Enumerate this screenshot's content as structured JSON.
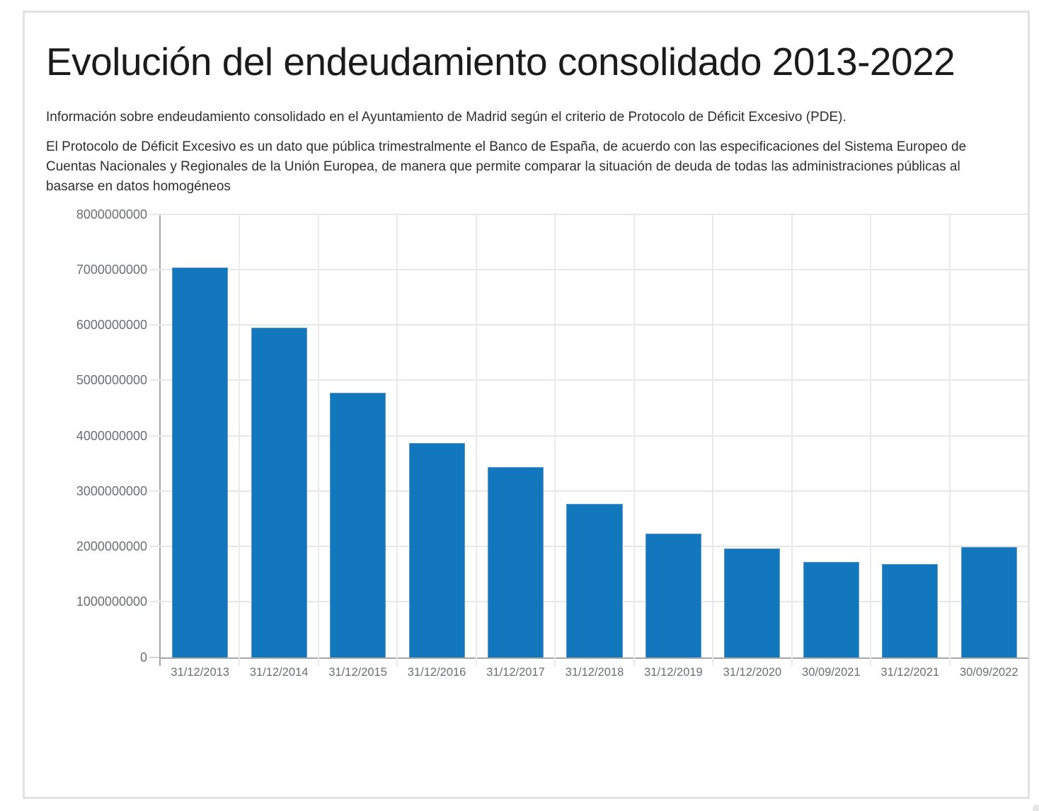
{
  "header": {
    "title": "Evolución del endeudamiento consolidado 2013-2022",
    "intro": "Información sobre endeudamiento consolidado en el Ayuntamiento de Madrid según el criterio de Protocolo de Déficit Excesivo (PDE).",
    "description": "El Protocolo de Déficit Excesivo es un dato que pública trimestralmente el Banco de España, de acuerdo con las especificaciones del Sistema Europeo de Cuentas Nacionales y Regionales de la Unión Europea, de manera que permite comparar la situación de deuda de todas las administraciones públicas al basarse en datos homogéneos"
  },
  "chart_data": {
    "type": "bar",
    "title": "Evolución del endeudamiento consolidado 2013-2022",
    "xlabel": "",
    "ylabel": "",
    "categories": [
      "31/12/2013",
      "31/12/2014",
      "31/12/2015",
      "31/12/2016",
      "31/12/2017",
      "31/12/2018",
      "31/12/2019",
      "31/12/2020",
      "30/09/2021",
      "31/12/2021",
      "30/09/2022"
    ],
    "values": [
      7040000000,
      5950000000,
      4770000000,
      3870000000,
      3430000000,
      2770000000,
      2230000000,
      1970000000,
      1720000000,
      1680000000,
      1990000000
    ],
    "ylim": [
      0,
      8000000000
    ],
    "yticks": [
      0,
      1000000000,
      2000000000,
      3000000000,
      4000000000,
      5000000000,
      6000000000,
      7000000000,
      8000000000
    ],
    "grid": true,
    "legend": false,
    "bar_color": "#1277bc",
    "gridline_color": "#e7e7e7",
    "axis_color": "#a6a6a6"
  }
}
